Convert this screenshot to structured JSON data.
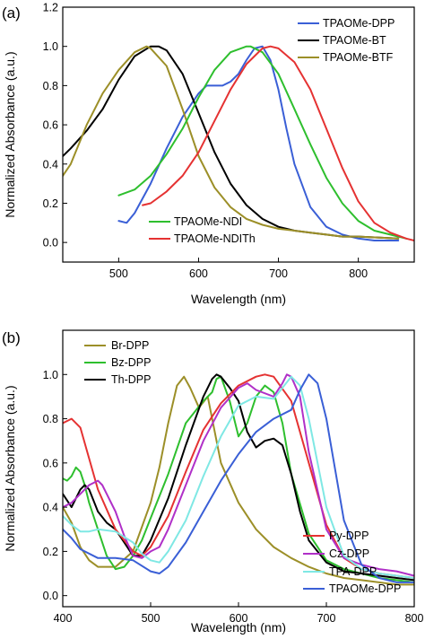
{
  "chart_data": [
    {
      "type": "line",
      "panel_label": "(a)",
      "title": "",
      "xlabel": "Wavelength (nm)",
      "ylabel": "Normalized Absorbance (a.u.)",
      "xlim": [
        430,
        870
      ],
      "ylim": [
        -0.1,
        1.2
      ],
      "xticks": [
        500,
        600,
        700,
        800
      ],
      "yticks": [
        0.0,
        0.2,
        0.4,
        0.6,
        0.8,
        1.0,
        1.2
      ],
      "legends": [
        {
          "placement": "top-right",
          "entries": [
            "TPAOMe-DPP",
            "TPAOMe-BT",
            "TPAOMe-BTF"
          ]
        },
        {
          "placement": "bottom-left",
          "entries": [
            "TPAOMe-NDI",
            "TPAOMe-NDITh"
          ]
        }
      ],
      "series": [
        {
          "name": "TPAOMe-DPP",
          "color": "#3a5fd6",
          "x": [
            500,
            510,
            520,
            540,
            560,
            580,
            600,
            610,
            620,
            630,
            640,
            650,
            660,
            670,
            680,
            690,
            700,
            710,
            720,
            740,
            760,
            780,
            800,
            820,
            850
          ],
          "y": [
            0.11,
            0.1,
            0.15,
            0.3,
            0.48,
            0.64,
            0.76,
            0.8,
            0.8,
            0.8,
            0.82,
            0.86,
            0.93,
            0.99,
            1.0,
            0.93,
            0.78,
            0.58,
            0.4,
            0.18,
            0.08,
            0.04,
            0.02,
            0.01,
            0.01
          ]
        },
        {
          "name": "TPAOMe-BT",
          "color": "#000000",
          "x": [
            430,
            440,
            460,
            480,
            500,
            520,
            540,
            550,
            560,
            580,
            600,
            620,
            640,
            660,
            680,
            700,
            720,
            740,
            760,
            780,
            800,
            850
          ],
          "y": [
            0.44,
            0.48,
            0.57,
            0.68,
            0.83,
            0.95,
            1.0,
            1.0,
            0.98,
            0.86,
            0.66,
            0.46,
            0.3,
            0.19,
            0.12,
            0.08,
            0.06,
            0.05,
            0.04,
            0.03,
            0.03,
            0.02
          ]
        },
        {
          "name": "TPAOMe-BTF",
          "color": "#9c8f28",
          "x": [
            430,
            440,
            460,
            480,
            500,
            520,
            535,
            540,
            560,
            580,
            600,
            620,
            640,
            660,
            680,
            700,
            720,
            740,
            760,
            780,
            800,
            850
          ],
          "y": [
            0.34,
            0.4,
            0.6,
            0.76,
            0.88,
            0.97,
            1.0,
            0.99,
            0.9,
            0.68,
            0.44,
            0.28,
            0.18,
            0.12,
            0.09,
            0.07,
            0.06,
            0.05,
            0.04,
            0.03,
            0.03,
            0.02
          ]
        },
        {
          "name": "TPAOMe-NDI",
          "color": "#2ebf2e",
          "x": [
            500,
            520,
            540,
            560,
            580,
            600,
            620,
            640,
            660,
            665,
            680,
            700,
            720,
            740,
            760,
            780,
            800,
            820,
            840,
            860
          ],
          "y": [
            0.24,
            0.27,
            0.34,
            0.45,
            0.58,
            0.74,
            0.88,
            0.97,
            1.0,
            1.0,
            0.97,
            0.86,
            0.68,
            0.5,
            0.33,
            0.2,
            0.11,
            0.06,
            0.04,
            0.02
          ]
        },
        {
          "name": "TPAOMe-NDITh",
          "color": "#e53232",
          "x": [
            530,
            540,
            560,
            580,
            600,
            620,
            640,
            660,
            680,
            690,
            700,
            720,
            740,
            760,
            780,
            800,
            820,
            840,
            860,
            870
          ],
          "y": [
            0.19,
            0.2,
            0.26,
            0.34,
            0.46,
            0.62,
            0.78,
            0.91,
            0.99,
            1.0,
            0.99,
            0.92,
            0.78,
            0.58,
            0.38,
            0.21,
            0.1,
            0.05,
            0.02,
            0.01
          ]
        }
      ]
    },
    {
      "type": "line",
      "panel_label": "(b)",
      "title": "",
      "xlabel": "Wavelength (nm)",
      "ylabel": "Normalized Absorbance (a.u.)",
      "xlim": [
        400,
        800
      ],
      "ylim": [
        -0.05,
        1.2
      ],
      "xticks": [
        400,
        500,
        600,
        700,
        800
      ],
      "yticks": [
        0.0,
        0.2,
        0.4,
        0.6,
        0.8,
        1.0
      ],
      "legends": [
        {
          "placement": "top-left",
          "entries": [
            "Br-DPP",
            "Bz-DPP",
            "Th-DPP"
          ]
        },
        {
          "placement": "bottom-right",
          "entries": [
            "Py-DPP",
            "Cz-DPP",
            "TPA-DPP",
            "TPAOMe-DPP"
          ]
        }
      ],
      "series": [
        {
          "name": "Br-DPP",
          "color": "#9c8f28",
          "x": [
            400,
            410,
            420,
            430,
            440,
            460,
            480,
            500,
            510,
            520,
            530,
            538,
            545,
            555,
            565,
            580,
            600,
            620,
            640,
            660,
            680,
            700,
            720,
            740,
            760,
            780,
            800
          ],
          "y": [
            0.4,
            0.33,
            0.22,
            0.16,
            0.13,
            0.13,
            0.2,
            0.42,
            0.58,
            0.78,
            0.95,
            0.99,
            0.94,
            0.85,
            0.9,
            0.6,
            0.42,
            0.3,
            0.22,
            0.17,
            0.13,
            0.1,
            0.08,
            0.07,
            0.06,
            0.05,
            0.05
          ]
        },
        {
          "name": "Bz-DPP",
          "color": "#2ebf2e",
          "x": [
            400,
            405,
            410,
            415,
            420,
            425,
            430,
            440,
            450,
            460,
            470,
            480,
            490,
            500,
            520,
            540,
            560,
            570,
            575,
            580,
            590,
            600,
            610,
            620,
            630,
            640,
            650,
            660,
            680,
            700,
            720,
            740,
            760,
            780,
            800
          ],
          "y": [
            0.53,
            0.52,
            0.54,
            0.58,
            0.56,
            0.5,
            0.42,
            0.3,
            0.18,
            0.12,
            0.13,
            0.18,
            0.25,
            0.35,
            0.55,
            0.78,
            0.88,
            0.92,
            0.98,
            0.99,
            0.88,
            0.72,
            0.78,
            0.9,
            0.95,
            0.92,
            0.78,
            0.55,
            0.28,
            0.16,
            0.12,
            0.1,
            0.08,
            0.07,
            0.06
          ]
        },
        {
          "name": "Th-DPP",
          "color": "#000000",
          "x": [
            400,
            410,
            420,
            425,
            430,
            440,
            450,
            460,
            470,
            480,
            490,
            500,
            520,
            540,
            560,
            570,
            575,
            580,
            590,
            600,
            610,
            620,
            630,
            640,
            650,
            660,
            670,
            680,
            700,
            720,
            740,
            760,
            780,
            800
          ],
          "y": [
            0.46,
            0.4,
            0.48,
            0.5,
            0.48,
            0.38,
            0.33,
            0.3,
            0.24,
            0.18,
            0.18,
            0.25,
            0.44,
            0.68,
            0.9,
            0.98,
            1.0,
            0.99,
            0.94,
            0.88,
            0.74,
            0.67,
            0.7,
            0.71,
            0.68,
            0.55,
            0.38,
            0.25,
            0.15,
            0.11,
            0.1,
            0.09,
            0.08,
            0.07
          ]
        },
        {
          "name": "Py-DPP",
          "color": "#e53232",
          "x": [
            400,
            410,
            420,
            430,
            440,
            460,
            480,
            490,
            500,
            520,
            540,
            560,
            580,
            600,
            620,
            630,
            640,
            660,
            680,
            700,
            720,
            740,
            760,
            780,
            800
          ],
          "y": [
            0.78,
            0.8,
            0.76,
            0.62,
            0.48,
            0.3,
            0.2,
            0.18,
            0.22,
            0.36,
            0.56,
            0.75,
            0.87,
            0.95,
            0.99,
            1.0,
            0.99,
            0.88,
            0.6,
            0.32,
            0.17,
            0.12,
            0.1,
            0.09,
            0.08
          ]
        },
        {
          "name": "Cz-DPP",
          "color": "#b030c8",
          "x": [
            400,
            410,
            420,
            430,
            440,
            445,
            450,
            460,
            470,
            480,
            490,
            500,
            510,
            520,
            540,
            560,
            580,
            600,
            610,
            620,
            640,
            650,
            655,
            660,
            670,
            680,
            700,
            720,
            740,
            760,
            780,
            800
          ],
          "y": [
            0.4,
            0.42,
            0.46,
            0.5,
            0.52,
            0.5,
            0.46,
            0.38,
            0.27,
            0.18,
            0.17,
            0.2,
            0.22,
            0.3,
            0.5,
            0.7,
            0.85,
            0.94,
            0.96,
            0.93,
            0.9,
            0.96,
            1.0,
            0.99,
            0.9,
            0.65,
            0.3,
            0.17,
            0.14,
            0.12,
            0.11,
            0.09
          ]
        },
        {
          "name": "TPA-DPP",
          "color": "#7fe8e4",
          "x": [
            400,
            410,
            420,
            430,
            440,
            460,
            480,
            490,
            500,
            510,
            520,
            540,
            560,
            580,
            600,
            620,
            640,
            650,
            660,
            670,
            680,
            700,
            720,
            740,
            760,
            780,
            800
          ],
          "y": [
            0.36,
            0.32,
            0.29,
            0.29,
            0.3,
            0.29,
            0.24,
            0.19,
            0.16,
            0.15,
            0.2,
            0.34,
            0.54,
            0.72,
            0.86,
            0.9,
            0.89,
            0.94,
            0.99,
            0.95,
            0.8,
            0.4,
            0.18,
            0.12,
            0.1,
            0.09,
            0.08
          ]
        },
        {
          "name": "TPAOMe-DPP",
          "color": "#3a5fd6",
          "x": [
            400,
            410,
            420,
            440,
            460,
            480,
            500,
            510,
            520,
            540,
            560,
            580,
            600,
            620,
            640,
            660,
            670,
            680,
            690,
            700,
            720,
            740,
            760,
            780,
            800
          ],
          "y": [
            0.3,
            0.26,
            0.21,
            0.17,
            0.17,
            0.16,
            0.11,
            0.1,
            0.13,
            0.24,
            0.38,
            0.52,
            0.64,
            0.74,
            0.8,
            0.84,
            0.93,
            1.0,
            0.96,
            0.8,
            0.34,
            0.14,
            0.08,
            0.06,
            0.06
          ]
        }
      ]
    }
  ]
}
